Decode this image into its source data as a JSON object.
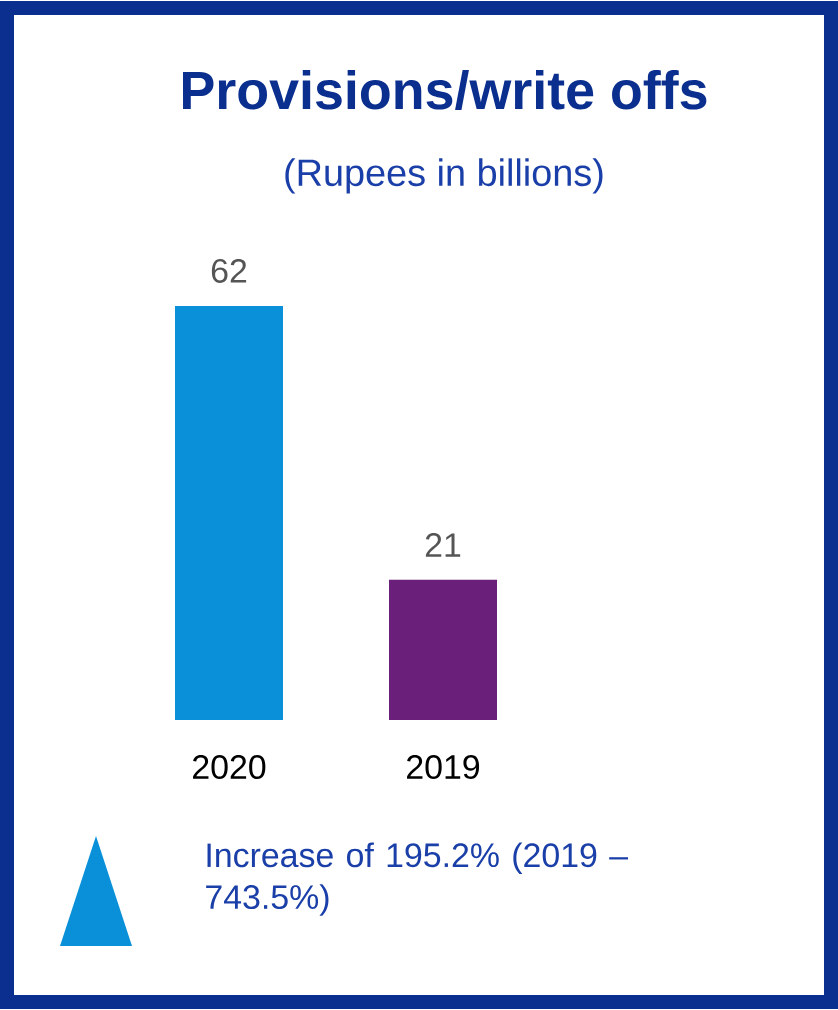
{
  "chart_data": {
    "type": "bar",
    "title": "Provisions/write offs",
    "subtitle": "(Rupees in billions)",
    "categories": [
      "2020",
      "2019"
    ],
    "values": [
      62,
      21
    ],
    "colors": [
      "#0a90d8",
      "#6a1f7a"
    ],
    "data_labels": true,
    "annotations": [
      "Increase of 195.2% (2019 – 743.5%)"
    ]
  }
}
